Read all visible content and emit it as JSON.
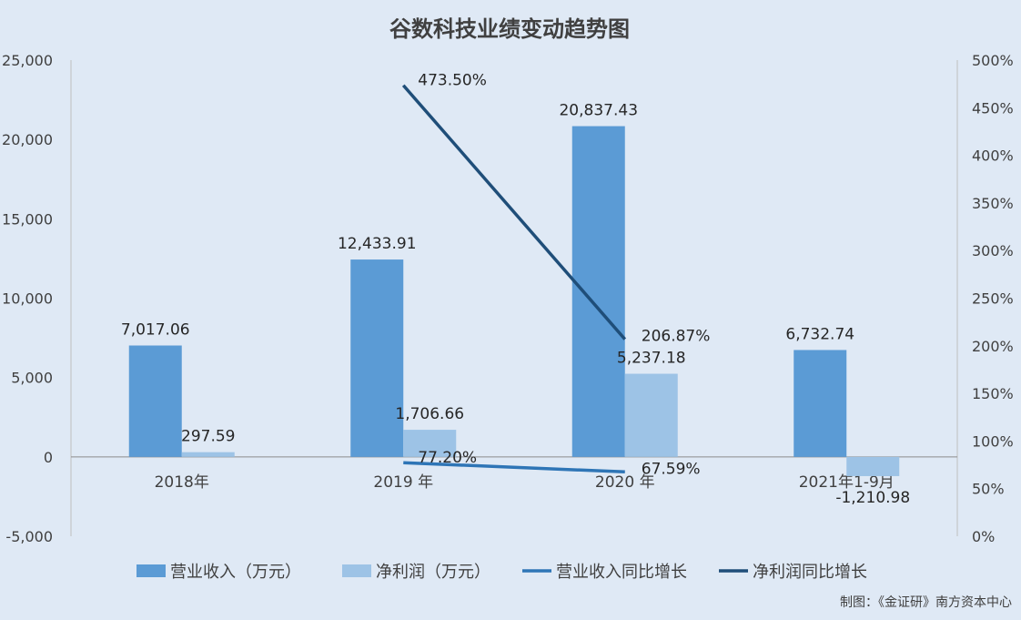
{
  "chart_data": {
    "type": "bar",
    "title": "谷数科技业绩变动趋势图",
    "categories": [
      "2018年",
      "2019 年",
      "2020 年",
      "2021年1-9月"
    ],
    "series": [
      {
        "name": "营业收入（万元）",
        "type": "bar",
        "axis": "left",
        "color": "#5b9bd5",
        "values": [
          7017.06,
          12433.91,
          20837.43,
          6732.74
        ],
        "labels": [
          "7,017.06",
          "12,433.91",
          "20,837.43",
          "6,732.74"
        ]
      },
      {
        "name": "净利润（万元）",
        "type": "bar",
        "axis": "left",
        "color": "#9dc3e6",
        "values": [
          297.59,
          1706.66,
          5237.18,
          -1210.98
        ],
        "labels": [
          "297.59",
          "1,706.66",
          "5,237.18",
          "-1,210.98"
        ]
      },
      {
        "name": "营业收入同比增长",
        "type": "line",
        "axis": "right",
        "color": "#2e75b6",
        "values": [
          null,
          77.2,
          67.59,
          null
        ],
        "labels": [
          null,
          "77.20%",
          "67.59%",
          null
        ]
      },
      {
        "name": "净利润同比增长",
        "type": "line",
        "axis": "right",
        "color": "#1f4e79",
        "values": [
          null,
          473.5,
          206.87,
          null
        ],
        "labels": [
          null,
          "473.50%",
          "206.87%",
          null
        ]
      }
    ],
    "ylim": [
      -5000,
      25000
    ],
    "y2lim": [
      0,
      500
    ],
    "yticks": [
      "-5,000",
      "0",
      "5,000",
      "10,000",
      "15,000",
      "20,000",
      "25,000"
    ],
    "y2ticks": [
      "0%",
      "50%",
      "100%",
      "150%",
      "200%",
      "250%",
      "300%",
      "350%",
      "400%",
      "450%",
      "500%"
    ],
    "legend_position": "bottom",
    "grid": false
  },
  "source_note": "制图：《金证研》南方资本中心"
}
